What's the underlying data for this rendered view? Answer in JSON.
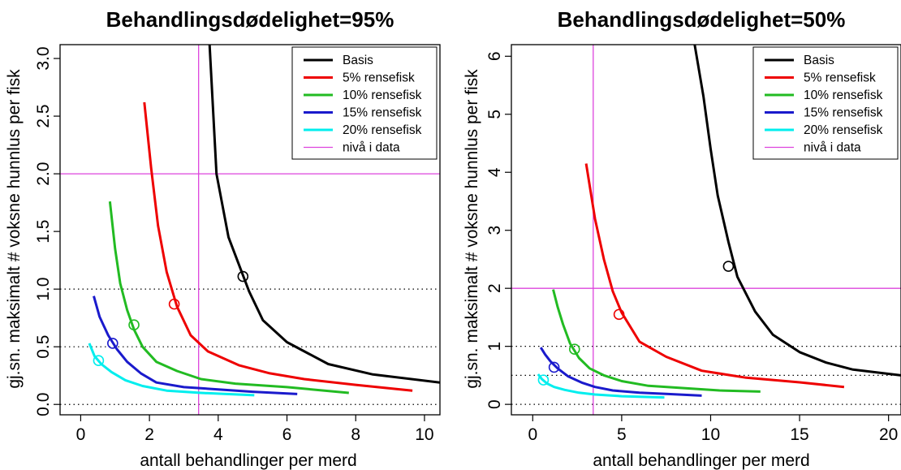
{
  "colors": {
    "basis": "#000000",
    "r5": "#ee0000",
    "r10": "#22bb22",
    "r15": "#1a1acc",
    "r20": "#00eeee",
    "data_level": "#dd44dd",
    "reference": "#000000"
  },
  "chart_data": [
    {
      "type": "line",
      "title": "Behandlingsdødelighet=95%",
      "xlabel": "antall behandlinger per merd",
      "ylabel": "gj.sn. maksimalt # voksne hunnlus per fisk",
      "xlim": [
        -0.6,
        10.45
      ],
      "ylim": [
        -0.09,
        3.12
      ],
      "xticks": [
        0,
        2,
        4,
        6,
        8,
        10
      ],
      "yticks": [
        0.0,
        0.5,
        1.0,
        1.5,
        2.0,
        2.5,
        3.0
      ],
      "ytick_labels": [
        "0.0",
        "0.5",
        "1.0",
        "1.5",
        "2.0",
        "2.5",
        "3.0"
      ],
      "legend_position": "top-right",
      "legend": [
        "Basis",
        "5% rensefisk",
        "10% rensefisk",
        "15% rensefisk",
        "20% rensefisk",
        "nivå i data"
      ],
      "reference_hlines": [
        0,
        0.5,
        1.0
      ],
      "data_level": {
        "x": 3.43,
        "y": 2.0
      },
      "series": [
        {
          "name": "Basis",
          "color_key": "basis",
          "x": [
            3.75,
            3.95,
            4.3,
            4.9,
            5.3,
            6.0,
            7.2,
            8.5,
            10.45
          ],
          "y": [
            3.12,
            2.0,
            1.45,
            0.98,
            0.73,
            0.54,
            0.35,
            0.26,
            0.19
          ],
          "marker": {
            "x": 4.72,
            "y": 1.11
          }
        },
        {
          "name": "5% rensefisk",
          "color_key": "r5",
          "x": [
            1.85,
            2.05,
            2.25,
            2.5,
            2.8,
            3.2,
            3.7,
            4.6,
            5.5,
            6.5,
            8.0,
            9.65
          ],
          "y": [
            2.62,
            2.05,
            1.55,
            1.15,
            0.85,
            0.6,
            0.46,
            0.34,
            0.27,
            0.22,
            0.17,
            0.12
          ],
          "marker": {
            "x": 2.72,
            "y": 0.87
          }
        },
        {
          "name": "10% rensefisk",
          "color_key": "r10",
          "x": [
            0.85,
            1.0,
            1.15,
            1.35,
            1.55,
            1.8,
            2.2,
            2.8,
            3.5,
            4.5,
            6.0,
            7.8
          ],
          "y": [
            1.76,
            1.35,
            1.05,
            0.82,
            0.65,
            0.5,
            0.37,
            0.29,
            0.22,
            0.18,
            0.15,
            0.1
          ],
          "marker": {
            "x": 1.55,
            "y": 0.69
          }
        },
        {
          "name": "15% rensefisk",
          "color_key": "r15",
          "x": [
            0.38,
            0.55,
            0.8,
            1.05,
            1.35,
            1.75,
            2.2,
            3.0,
            4.0,
            5.0,
            6.3
          ],
          "y": [
            0.94,
            0.76,
            0.6,
            0.48,
            0.37,
            0.27,
            0.19,
            0.15,
            0.13,
            0.11,
            0.09
          ],
          "marker": {
            "x": 0.93,
            "y": 0.53
          }
        },
        {
          "name": "20% rensefisk",
          "color_key": "r20",
          "x": [
            0.25,
            0.4,
            0.6,
            0.9,
            1.3,
            1.8,
            2.5,
            3.5,
            5.05
          ],
          "y": [
            0.53,
            0.42,
            0.35,
            0.28,
            0.21,
            0.16,
            0.12,
            0.1,
            0.08
          ],
          "marker": {
            "x": 0.52,
            "y": 0.38
          }
        }
      ]
    },
    {
      "type": "line",
      "title": "Behandlingsdødelighet=50%",
      "xlabel": "antall behandlinger per merd",
      "ylabel": "gj.sn. maksimalt # voksne hunnlus per fisk",
      "xlim": [
        -1.2,
        20.7
      ],
      "ylim": [
        -0.18,
        6.2
      ],
      "xticks": [
        0,
        5,
        10,
        15,
        20
      ],
      "yticks": [
        0,
        1,
        2,
        3,
        4,
        5,
        6
      ],
      "ytick_labels": [
        "0",
        "1",
        "2",
        "3",
        "4",
        "5",
        "6"
      ],
      "legend_position": "top-right",
      "legend": [
        "Basis",
        "5% rensefisk",
        "10% rensefisk",
        "15% rensefisk",
        "20% rensefisk",
        "nivå i data"
      ],
      "reference_hlines": [
        0,
        0.5,
        1.0
      ],
      "data_level": {
        "x": 3.4,
        "y": 2.0
      },
      "series": [
        {
          "name": "Basis",
          "color_key": "basis",
          "x": [
            9.1,
            9.6,
            10.0,
            10.4,
            11.0,
            11.5,
            12.5,
            13.5,
            15.0,
            16.5,
            18.0,
            20.7
          ],
          "y": [
            6.2,
            5.3,
            4.4,
            3.6,
            2.8,
            2.2,
            1.6,
            1.2,
            0.9,
            0.72,
            0.6,
            0.5
          ],
          "marker": {
            "x": 11.0,
            "y": 2.38
          }
        },
        {
          "name": "5% rensefisk",
          "color_key": "r5",
          "x": [
            3.0,
            3.5,
            4.0,
            4.5,
            5.0,
            6.0,
            7.5,
            9.5,
            12.0,
            15.0,
            17.5
          ],
          "y": [
            4.15,
            3.2,
            2.5,
            1.95,
            1.58,
            1.08,
            0.82,
            0.58,
            0.46,
            0.38,
            0.3
          ],
          "marker": {
            "x": 4.85,
            "y": 1.55
          }
        },
        {
          "name": "10% rensefisk",
          "color_key": "r10",
          "x": [
            1.15,
            1.4,
            1.7,
            2.1,
            2.6,
            3.2,
            4.0,
            5.0,
            6.5,
            8.5,
            10.5,
            12.8
          ],
          "y": [
            1.98,
            1.68,
            1.38,
            1.05,
            0.8,
            0.62,
            0.5,
            0.4,
            0.32,
            0.28,
            0.24,
            0.22
          ],
          "marker": {
            "x": 2.35,
            "y": 0.95
          }
        },
        {
          "name": "15% rensefisk",
          "color_key": "r15",
          "x": [
            0.45,
            0.7,
            1.0,
            1.4,
            2.0,
            2.8,
            3.5,
            4.5,
            6.0,
            7.5,
            9.5
          ],
          "y": [
            0.98,
            0.86,
            0.74,
            0.62,
            0.48,
            0.37,
            0.3,
            0.24,
            0.2,
            0.18,
            0.15
          ],
          "marker": {
            "x": 1.2,
            "y": 0.64
          }
        },
        {
          "name": "20% rensefisk",
          "color_key": "r20",
          "x": [
            0.3,
            0.5,
            0.8,
            1.2,
            1.8,
            2.6,
            3.5,
            5.0,
            7.4
          ],
          "y": [
            0.52,
            0.44,
            0.36,
            0.3,
            0.25,
            0.2,
            0.17,
            0.14,
            0.12
          ],
          "marker": {
            "x": 0.6,
            "y": 0.42
          }
        }
      ]
    }
  ]
}
